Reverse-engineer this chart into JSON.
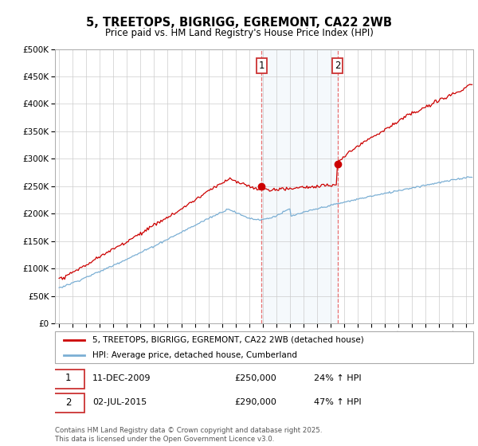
{
  "title": "5, TREETOPS, BIGRIGG, EGREMONT, CA22 2WB",
  "subtitle": "Price paid vs. HM Land Registry's House Price Index (HPI)",
  "background_color": "#ffffff",
  "grid_color": "#cccccc",
  "red_line_color": "#cc0000",
  "blue_line_color": "#7bafd4",
  "shade_color": "#d8e8f5",
  "vline_color": "#e87070",
  "legend_entry1": "5, TREETOPS, BIGRIGG, EGREMONT, CA22 2WB (detached house)",
  "legend_entry2": "HPI: Average price, detached house, Cumberland",
  "footer": "Contains HM Land Registry data © Crown copyright and database right 2025.\nThis data is licensed under the Open Government Licence v3.0.",
  "ylim": [
    0,
    500000
  ],
  "yticks": [
    0,
    50000,
    100000,
    150000,
    200000,
    250000,
    300000,
    350000,
    400000,
    450000,
    500000
  ],
  "start_year": 1995,
  "end_year": 2025
}
